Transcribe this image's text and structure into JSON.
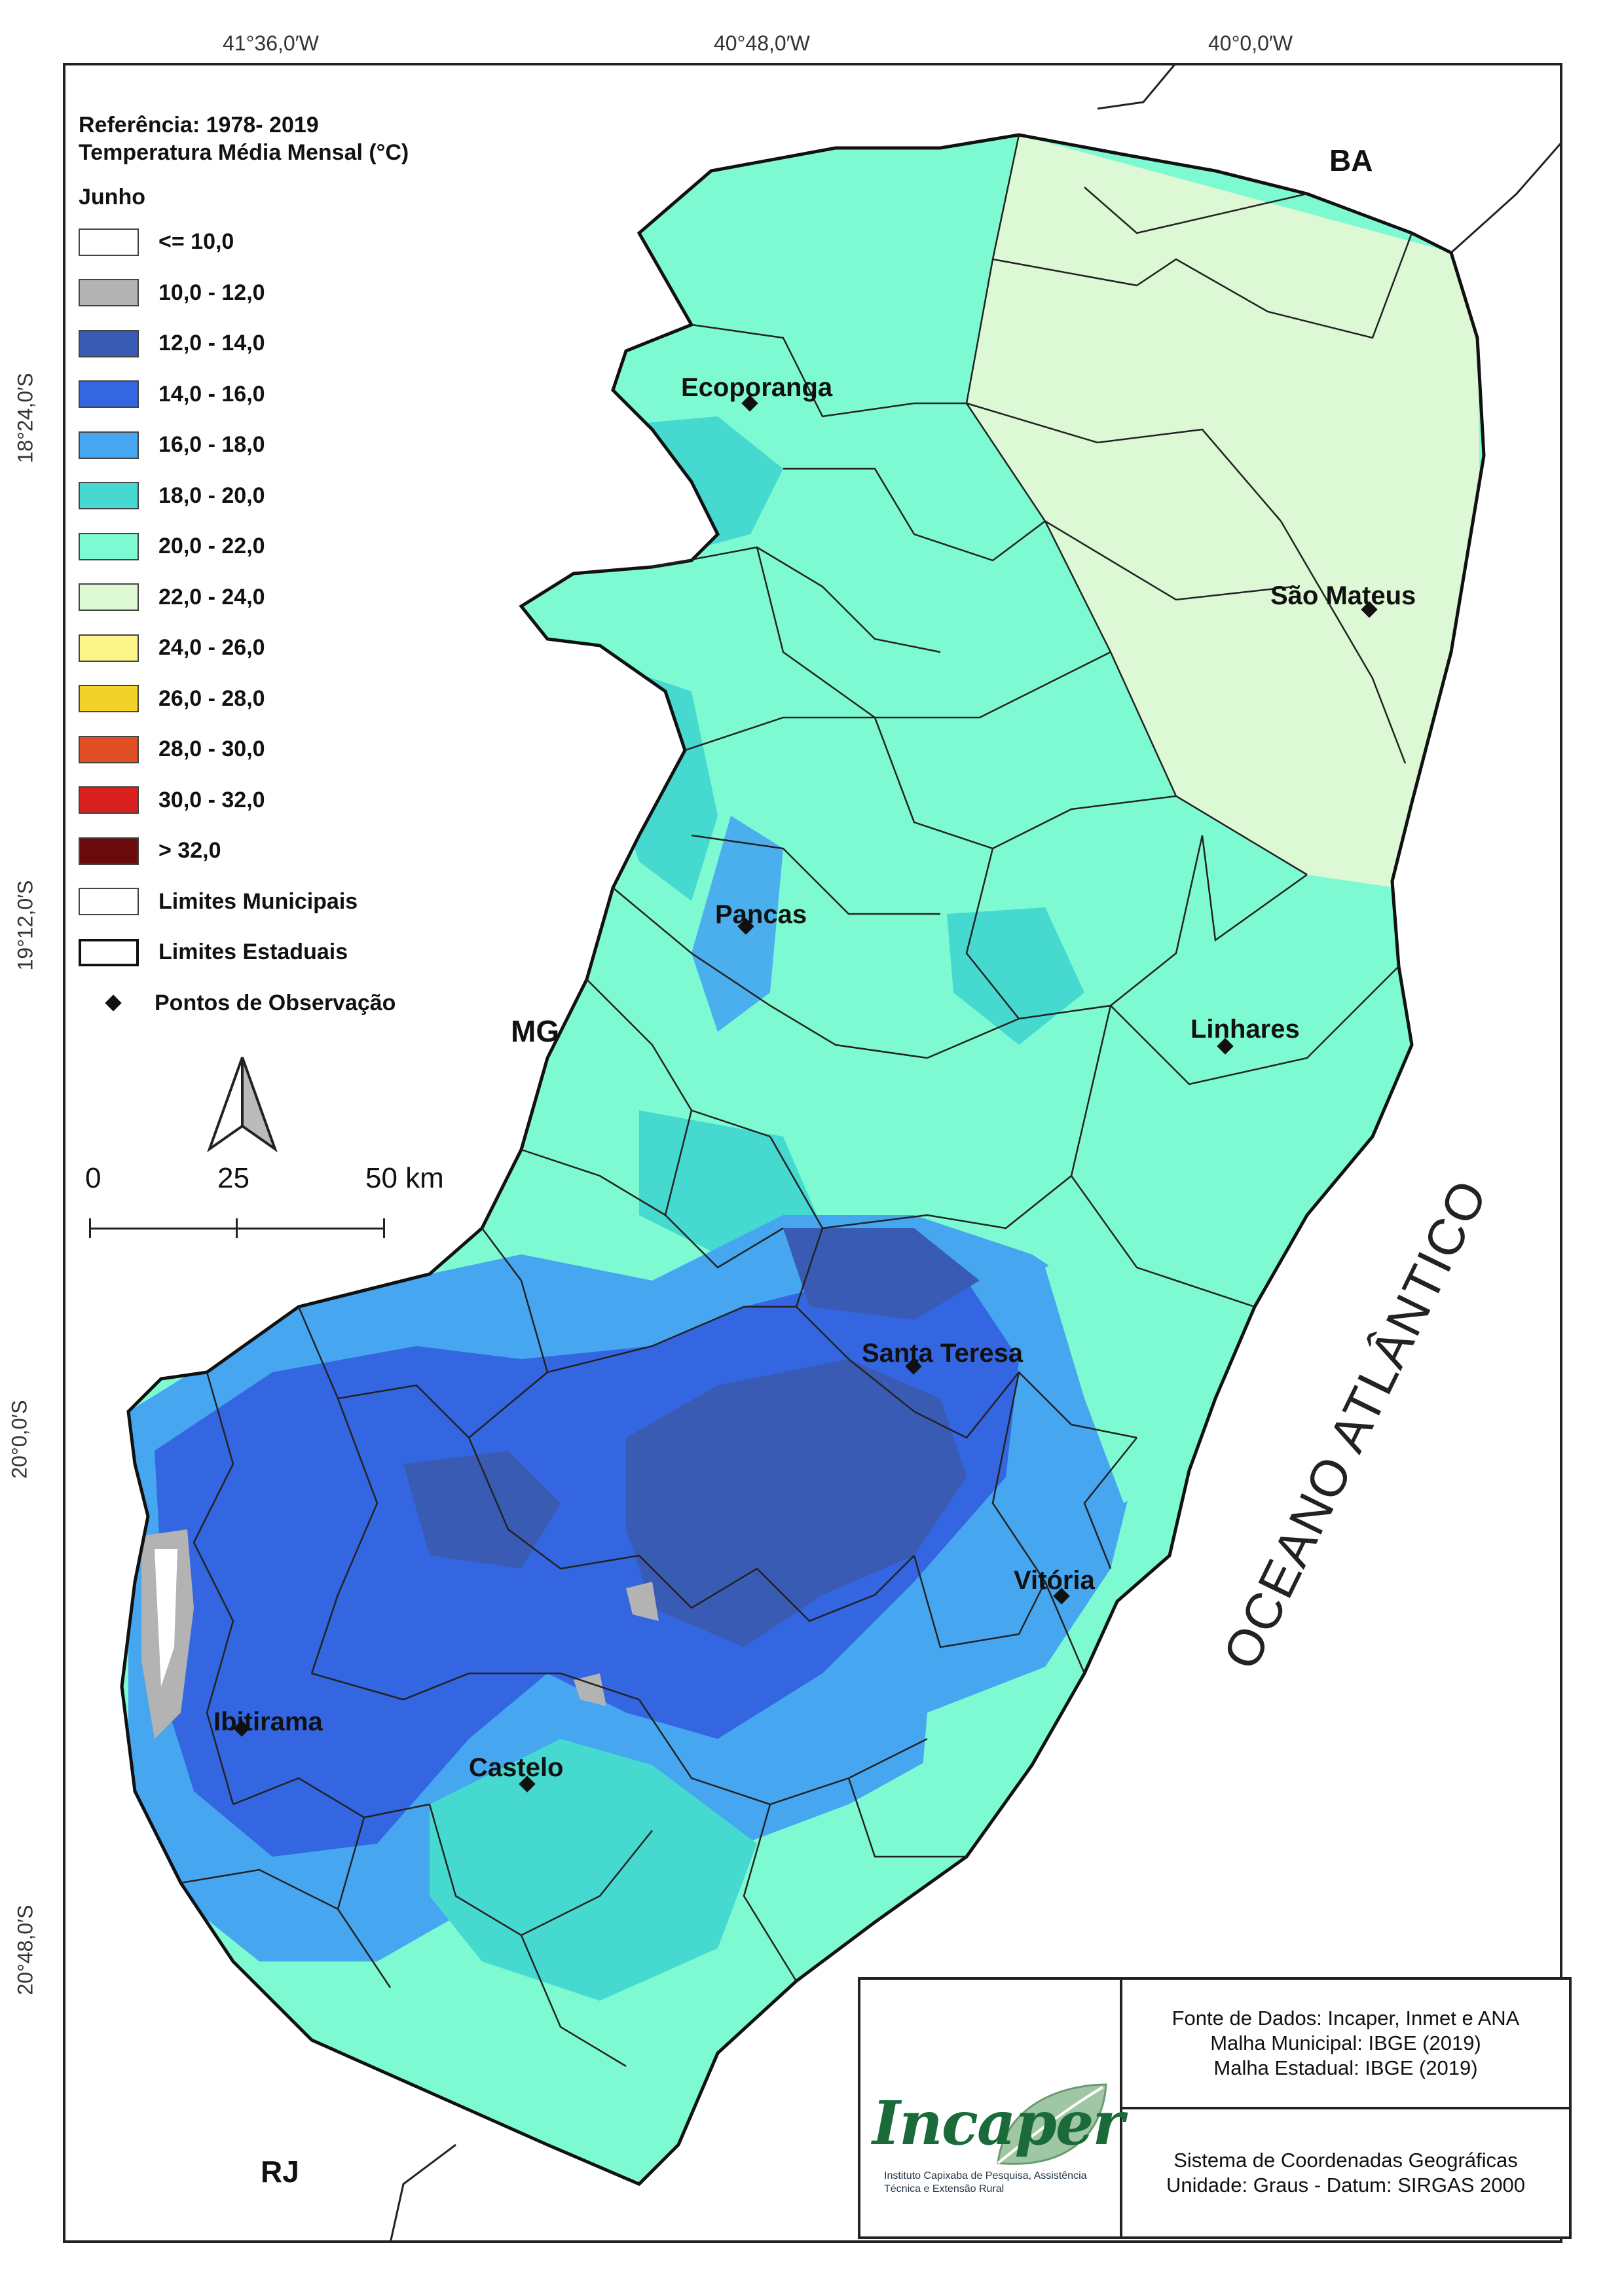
{
  "map": {
    "legend_title_1": "Referência: 1978- 2019",
    "legend_title_2": "Temperatura Média Mensal (°C)",
    "month": "Junho",
    "classes": [
      {
        "label": "<= 10,0",
        "color": "#ffffff"
      },
      {
        "label": "10,0 - 12,0",
        "color": "#b3b3b3"
      },
      {
        "label": "12,0 - 14,0",
        "color": "#3a5bb3"
      },
      {
        "label": "14,0 - 16,0",
        "color": "#3366e0"
      },
      {
        "label": "16,0 - 18,0",
        "color": "#46a6f0"
      },
      {
        "label": "18,0 - 20,0",
        "color": "#45d9d0"
      },
      {
        "label": "20,0 - 22,0",
        "color": "#7dfad2"
      },
      {
        "label": "22,0 - 24,0",
        "color": "#dcf8d4"
      },
      {
        "label": "24,0 - 26,0",
        "color": "#fbf58a"
      },
      {
        "label": "26,0 - 28,0",
        "color": "#f2d128"
      },
      {
        "label": "28,0 - 30,0",
        "color": "#e14e23"
      },
      {
        "label": "30,0 - 32,0",
        "color": "#d8201f"
      },
      {
        "label": "> 32,0",
        "color": "#6a0b0b"
      }
    ],
    "municipal_limits": "Limites Municipais",
    "state_limits": "Limites Estaduais",
    "points": "Pontos de Observação",
    "scale": {
      "t0": "0",
      "t1": "25",
      "t2": "50 km"
    },
    "lon_labels": [
      "41°36,0′W",
      "40°48,0′W",
      "40°0,0′W"
    ],
    "lat_labels": [
      "18°24,0′S",
      "19°12,0′S",
      "20°0,0′S",
      "20°48,0′S"
    ],
    "states": {
      "ba": "BA",
      "mg": "MG",
      "rj": "RJ"
    },
    "ocean": "OCEANO ATLÂNTICO",
    "cities": {
      "ecoporanga": "Ecoporanga",
      "sao_mateus": "São Mateus",
      "pancas": "Pancas",
      "linhares": "Linhares",
      "santa_teresa": "Santa Teresa",
      "vitoria": "Vitória",
      "ibitirama": "Ibitirama",
      "castelo": "Castelo"
    }
  },
  "info": {
    "logo_name": "Incaper",
    "logo_tagline": "Instituto Capixaba de Pesquisa, Assistência Técnica e Extensão Rural",
    "sources_1": "Fonte de Dados: Incaper, Inmet e ANA",
    "sources_2": "Malha Municipal: IBGE (2019)",
    "sources_3": "Malha Estadual: IBGE (2019)",
    "crs_1": "Sistema de Coordenadas Geográficas",
    "crs_2": "Unidade: Graus - Datum: SIRGAS 2000"
  }
}
